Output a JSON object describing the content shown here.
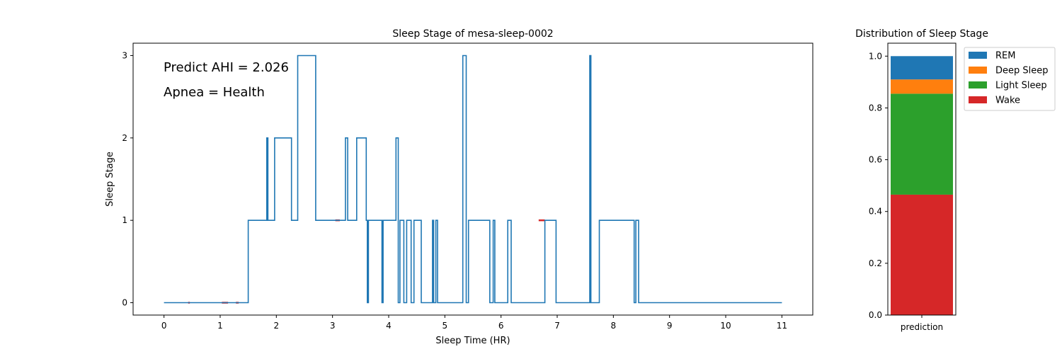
{
  "chart_data": [
    {
      "type": "line",
      "title": "Sleep Stage of mesa-sleep-0002",
      "xlabel": "Sleep Time (HR)",
      "ylabel": "Sleep Stage",
      "xlim": [
        -0.55,
        11.55
      ],
      "ylim": [
        -0.15,
        3.15
      ],
      "xticks": [
        0,
        1,
        2,
        3,
        4,
        5,
        6,
        7,
        8,
        9,
        10,
        11
      ],
      "yticks": [
        0,
        1,
        2,
        3
      ],
      "annotations": [
        "Predict AHI = 2.026",
        "Apnea = Health"
      ],
      "grid": false,
      "series": [
        {
          "color": "#1f77b4",
          "x": [
            0,
            1.5,
            1.5,
            1.83,
            1.83,
            1.85,
            1.85,
            1.97,
            1.97,
            2.27,
            2.27,
            2.38,
            2.38,
            2.7,
            2.7,
            3.23,
            3.23,
            3.27,
            3.27,
            3.43,
            3.43,
            3.6,
            3.6,
            3.62,
            3.62,
            3.64,
            3.64,
            3.88,
            3.88,
            3.9,
            3.9,
            4.13,
            4.13,
            4.17,
            4.17,
            4.2,
            4.2,
            4.27,
            4.27,
            4.32,
            4.32,
            4.4,
            4.4,
            4.45,
            4.45,
            4.58,
            4.58,
            4.78,
            4.78,
            4.8,
            4.8,
            4.84,
            4.84,
            4.87,
            4.87,
            5.32,
            5.32,
            5.38,
            5.38,
            5.42,
            5.42,
            5.8,
            5.8,
            5.86,
            5.86,
            5.89,
            5.89,
            6.12,
            6.12,
            6.18,
            6.18,
            6.78,
            6.78,
            6.98,
            6.98,
            7.58,
            7.58,
            7.6,
            7.6,
            7.75,
            7.75,
            8.37,
            8.37,
            8.4,
            8.4,
            8.45,
            8.45,
            11
          ],
          "y": [
            0,
            0,
            1,
            1,
            2,
            2,
            1,
            1,
            2,
            2,
            1,
            1,
            3,
            3,
            1,
            1,
            2,
            2,
            1,
            1,
            2,
            2,
            1,
            1,
            0,
            0,
            1,
            1,
            0,
            0,
            1,
            1,
            2,
            2,
            0,
            0,
            1,
            1,
            0,
            0,
            1,
            1,
            0,
            0,
            1,
            1,
            0,
            0,
            1,
            1,
            0,
            0,
            1,
            1,
            0,
            0,
            3,
            3,
            0,
            0,
            1,
            1,
            0,
            0,
            1,
            1,
            0,
            0,
            1,
            1,
            0,
            0,
            1,
            1,
            0,
            0,
            3,
            3,
            0,
            0,
            1,
            1,
            0,
            0,
            1,
            1,
            0,
            0
          ]
        }
      ],
      "apnea_events": {
        "color": "#d62728",
        "segments": [
          [
            0.43,
            0.46,
            0
          ],
          [
            1.03,
            1.14,
            0
          ],
          [
            1.28,
            1.33,
            0
          ],
          [
            3.05,
            3.13,
            1
          ],
          [
            6.67,
            6.78,
            1
          ]
        ]
      }
    },
    {
      "type": "bar",
      "title": "Distribution of Sleep Stage",
      "categories": [
        "prediction"
      ],
      "ylim": [
        0,
        1.05
      ],
      "yticks": [
        "0.0",
        "0.2",
        "0.4",
        "0.6",
        "0.8",
        "1.0"
      ],
      "legend_position": "outside-top-right",
      "stacked": true,
      "series": [
        {
          "name": "REM",
          "values": [
            0.09
          ],
          "color": "#1f77b4"
        },
        {
          "name": "Deep Sleep",
          "values": [
            0.055
          ],
          "color": "#ff7f0e"
        },
        {
          "name": "Light Sleep",
          "values": [
            0.39
          ],
          "color": "#2ca02c"
        },
        {
          "name": "Wake",
          "values": [
            0.465
          ],
          "color": "#d62728"
        }
      ],
      "stack_order_bottom_to_top": [
        "Wake",
        "Light Sleep",
        "Deep Sleep",
        "REM"
      ]
    }
  ]
}
